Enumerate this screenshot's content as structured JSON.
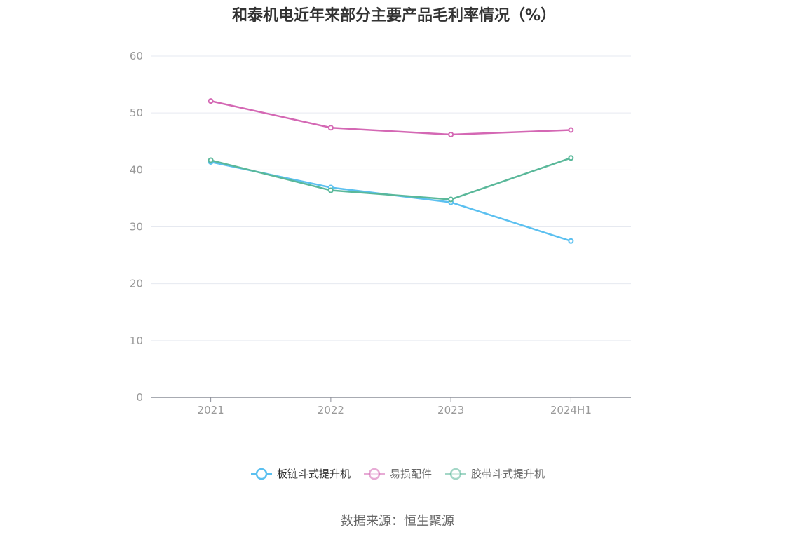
{
  "chart_data": {
    "type": "line",
    "title": "和泰机电近年来部分主要产品毛利率情况（%）",
    "categories": [
      "2021",
      "2022",
      "2023",
      "2024H1"
    ],
    "ylim": [
      0,
      60
    ],
    "yticks": [
      0,
      10,
      20,
      30,
      40,
      50,
      60
    ],
    "grid": true,
    "legend_position": "bottom",
    "series": [
      {
        "name": "板链斗式提升机",
        "color": "#5bc0f0",
        "values": [
          41.4,
          36.9,
          34.3,
          27.5
        ]
      },
      {
        "name": "易损配件",
        "color": "#d468b4",
        "values": [
          52.1,
          47.4,
          46.2,
          47.0
        ]
      },
      {
        "name": "胶带斗式提升机",
        "color": "#5ab89a",
        "values": [
          41.7,
          36.4,
          34.8,
          42.1
        ]
      }
    ]
  },
  "source": "数据来源：恒生聚源"
}
